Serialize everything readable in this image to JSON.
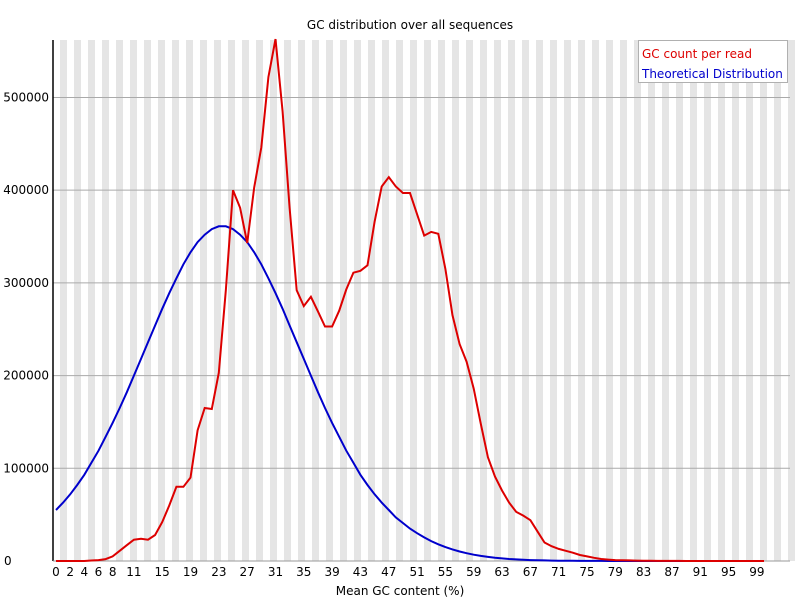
{
  "chart_data": {
    "type": "line",
    "title": "GC distribution over all sequences",
    "xlabel": "Mean GC content (%)",
    "ylabel": "",
    "xlim": [
      0,
      100
    ],
    "ylim": [
      0,
      562000
    ],
    "grid": {
      "horizontal": true,
      "vertical_stripes": true
    },
    "legend_position": "top-right",
    "x_tick_labels": [
      "0",
      "2",
      "4",
      "6",
      "8",
      "11",
      "15",
      "19",
      "23",
      "27",
      "31",
      "35",
      "39",
      "43",
      "47",
      "51",
      "55",
      "59",
      "63",
      "67",
      "71",
      "75",
      "79",
      "83",
      "87",
      "91",
      "95",
      "99"
    ],
    "y_tick_labels": [
      "0",
      "100000",
      "200000",
      "300000",
      "400000",
      "500000"
    ],
    "y_ticks": [
      0,
      100000,
      200000,
      300000,
      400000,
      500000
    ],
    "x": [
      0,
      1,
      2,
      3,
      4,
      5,
      6,
      7,
      8,
      9,
      10,
      11,
      12,
      13,
      14,
      15,
      16,
      17,
      18,
      19,
      20,
      21,
      22,
      23,
      24,
      25,
      26,
      27,
      28,
      29,
      30,
      31,
      32,
      33,
      34,
      35,
      36,
      37,
      38,
      39,
      40,
      41,
      42,
      43,
      44,
      45,
      46,
      47,
      48,
      49,
      50,
      51,
      52,
      53,
      54,
      55,
      56,
      57,
      58,
      59,
      60,
      61,
      62,
      63,
      64,
      65,
      66,
      67,
      68,
      69,
      70,
      71,
      72,
      73,
      74,
      75,
      76,
      77,
      78,
      79,
      80,
      81,
      82,
      83,
      84,
      85,
      86,
      87,
      88,
      89,
      90,
      91,
      92,
      93,
      94,
      95,
      96,
      97,
      98,
      99,
      100
    ],
    "series": [
      {
        "name": "GC count per read",
        "color": "#dd0000",
        "values": [
          0,
          0,
          0,
          0,
          0,
          500,
          1000,
          2000,
          5000,
          11000,
          17000,
          23000,
          24000,
          23000,
          28000,
          42000,
          60000,
          80000,
          80000,
          90000,
          141000,
          165000,
          164000,
          203000,
          293000,
          400000,
          381000,
          343000,
          403000,
          446000,
          522000,
          563000,
          485000,
          381000,
          292000,
          275000,
          285000,
          269000,
          253000,
          253000,
          270000,
          293000,
          311000,
          313000,
          319000,
          366000,
          404000,
          414000,
          404000,
          397000,
          397000,
          374000,
          351000,
          355000,
          353000,
          315000,
          265000,
          234000,
          215000,
          186000,
          148000,
          112000,
          91000,
          76000,
          63000,
          53000,
          49000,
          44000,
          32000,
          20000,
          16000,
          13000,
          11000,
          9000,
          6500,
          5000,
          3500,
          2200,
          1500,
          1000,
          800,
          600,
          400,
          300,
          200,
          150,
          100,
          80,
          60,
          40,
          30,
          20,
          15,
          10,
          8,
          5,
          3,
          2,
          1,
          0,
          0
        ]
      },
      {
        "name": "Theoretical Distribution",
        "color": "#0000cc",
        "values": [
          55000,
          63000,
          72000,
          82000,
          93000,
          106000,
          119000,
          134000,
          149000,
          165000,
          182000,
          200000,
          218000,
          236000,
          254000,
          272000,
          289000,
          305000,
          320000,
          333000,
          344000,
          352000,
          358000,
          361000,
          361000,
          358000,
          352000,
          344000,
          333000,
          320000,
          305000,
          289000,
          272000,
          254000,
          236000,
          218000,
          200000,
          182000,
          165000,
          149000,
          134000,
          119000,
          106000,
          93000,
          82000,
          72000,
          63000,
          55000,
          47000,
          41000,
          35000,
          30000,
          25500,
          21500,
          18000,
          15000,
          12500,
          10300,
          8400,
          6800,
          5500,
          4400,
          3500,
          2800,
          2200,
          1700,
          1300,
          1000,
          800,
          600,
          450,
          350,
          260,
          200,
          150,
          110,
          80,
          60,
          45,
          30,
          20,
          15,
          10,
          8,
          6,
          4,
          3,
          2,
          1,
          1,
          1,
          0,
          0,
          0,
          0,
          0,
          0,
          0,
          0,
          0,
          0
        ]
      }
    ]
  },
  "legend": {
    "items": [
      {
        "label": "GC count per read",
        "color": "#dd0000"
      },
      {
        "label": "Theoretical Distribution",
        "color": "#0000cc"
      }
    ]
  }
}
